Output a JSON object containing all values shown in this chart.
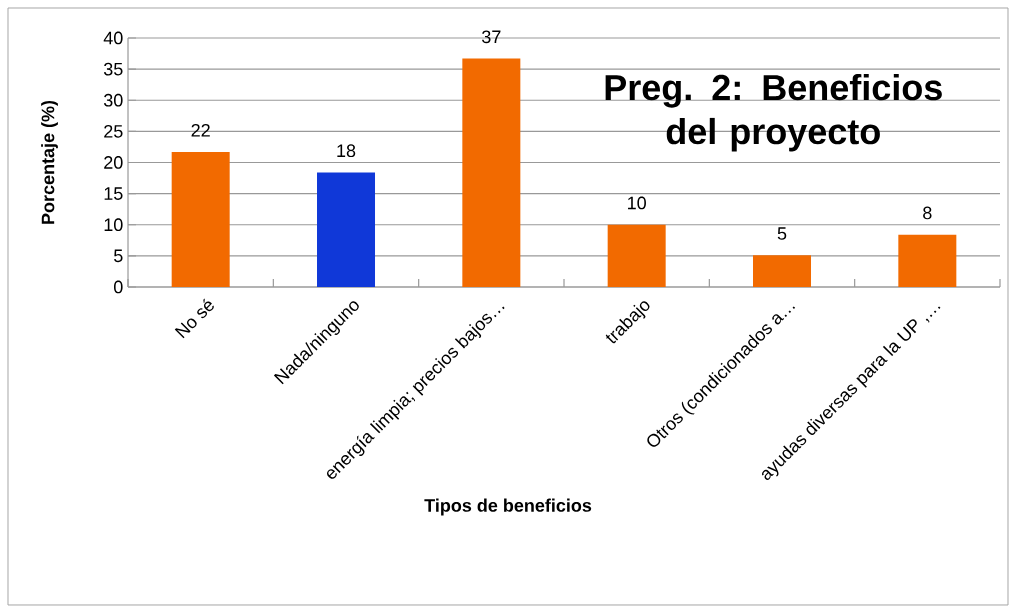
{
  "chart_data": {
    "type": "bar",
    "title": "Preg. 2: Beneficios del proyecto",
    "xlabel": "Tipos de beneficios",
    "ylabel": "Porcentaje (%)",
    "categories": [
      "No sé",
      "Nada/ninguno",
      "energía limpia; precios bajos…",
      "trabajo",
      "Otros (condicionados a…",
      "ayudas diversas para la UP ,…"
    ],
    "values": [
      21.7,
      18.4,
      36.7,
      10.0,
      5.1,
      8.4
    ],
    "value_labels": [
      "22",
      "18",
      "37",
      "10",
      "5",
      "8"
    ],
    "colors": [
      "#f26a00",
      "#1038d8",
      "#f26a00",
      "#f26a00",
      "#f26a00",
      "#f26a00"
    ],
    "ylim": [
      0,
      40
    ],
    "yticks": [
      0,
      5,
      10,
      15,
      20,
      25,
      30,
      35,
      40
    ],
    "grid": "y"
  }
}
